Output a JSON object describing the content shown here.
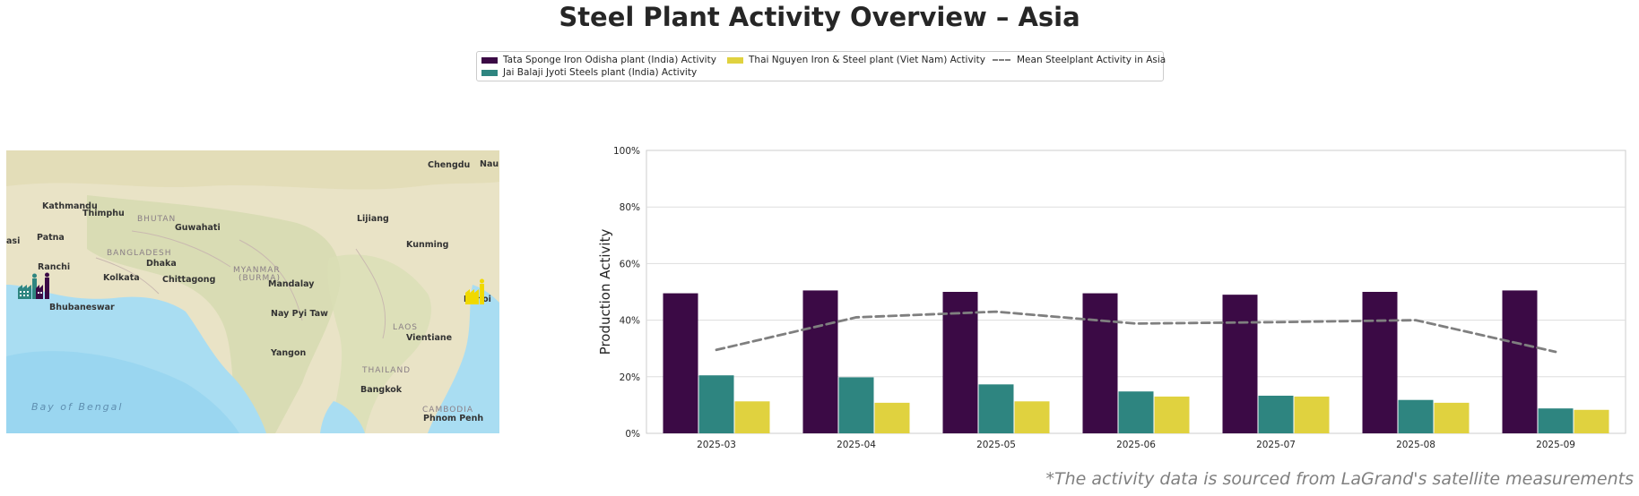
{
  "title": "Steel Plant Activity Overview – Asia",
  "footnote": "*The activity data is sourced from LaGrand's satellite measurements",
  "legend": {
    "items": [
      {
        "label": "Tata Sponge Iron Odisha plant (India) Activity",
        "color": "#3b0a45"
      },
      {
        "label": "Jai Balaji Jyoti Steels plant (India) Activity",
        "color": "#2e8580"
      },
      {
        "label": "Thai Nguyen Iron & Steel plant (Viet Nam) Activity",
        "color": "#e0d23f"
      },
      {
        "label": "Mean Steelplant Activity in Asia",
        "color": "#7f7f7f"
      }
    ]
  },
  "map": {
    "labels": {
      "chengdu": "Chengdu",
      "nanchong": "Nau",
      "kathmandu": "Kathmandu",
      "thimphu": "Thimphu",
      "bhutan": "BHUTAN",
      "guwahati": "Guwahati",
      "lijiang": "Lijiang",
      "patna": "Patna",
      "bangladesh": "BANGLADESH",
      "kunming": "Kunming",
      "asi": "asi",
      "ranchi": "Ranchi",
      "dhaka": "Dhaka",
      "myanmar": "MYANMAR",
      "burma": "(BURMA)",
      "kolkata": "Kolkata",
      "chittagong": "Chittagong",
      "mandalay": "Mandalay",
      "hanoi": "Hanoi",
      "bhubaneswar": "Bhubaneswar",
      "naypyitaw": "Nay Pyi Taw",
      "laos": "LAOS",
      "vientiane": "Vientiane",
      "yangon": "Yangon",
      "thailand": "THAILAND",
      "bay": "Bay   of   Bengal",
      "bangkok": "Bangkok",
      "cambodia": "CAMBODIA",
      "phnompenh": "Phnom Penh"
    }
  },
  "chart_data": {
    "type": "bar",
    "categories": [
      "2025-03",
      "2025-04",
      "2025-05",
      "2025-06",
      "2025-07",
      "2025-08",
      "2025-09"
    ],
    "series": [
      {
        "name": "Tata Sponge Iron Odisha plant (India) Activity",
        "color": "#3b0a45",
        "values": [
          49.5,
          50.5,
          50.0,
          49.5,
          49.0,
          50.0,
          50.5
        ]
      },
      {
        "name": "Jai Balaji Jyoti Steels plant (India) Activity",
        "color": "#2e8580",
        "values": [
          20.5,
          19.8,
          17.3,
          14.8,
          13.3,
          11.8,
          8.8
        ]
      },
      {
        "name": "Thai Nguyen Iron & Steel plant (Viet Nam) Activity",
        "color": "#e0d23f",
        "values": [
          11.3,
          10.8,
          11.3,
          13.0,
          13.0,
          10.8,
          8.3
        ]
      }
    ],
    "line": {
      "name": "Mean Steelplant Activity in Asia",
      "type": "line",
      "style": "dashed",
      "color": "#7f7f7f",
      "values": [
        29.5,
        41.0,
        43.0,
        38.8,
        39.3,
        40.0,
        28.8
      ]
    },
    "ylabel": "Production Activity",
    "xlabel": "",
    "ylim": [
      0,
      100
    ],
    "yticks": [
      "0%",
      "20%",
      "40%",
      "60%",
      "80%",
      "100%"
    ],
    "grid": true
  }
}
